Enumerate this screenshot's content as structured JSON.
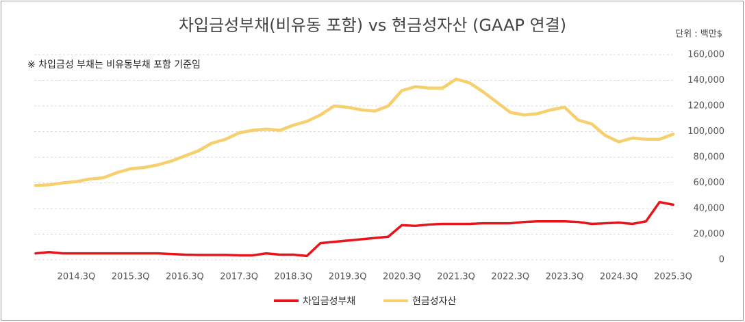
{
  "chart_data": {
    "type": "line",
    "title": "차입금성부채(비유동 포함) vs 현금성자산 (GAAP 연결)",
    "unit_label": "단위 : 백만$",
    "annotation": "※ 차입금성 부채는 비유동부채 포함 기준임",
    "categories": [
      null,
      null,
      null,
      "2014.3Q",
      null,
      null,
      null,
      "2015.3Q",
      null,
      null,
      null,
      "2016.3Q",
      null,
      null,
      null,
      "2017.3Q",
      null,
      null,
      null,
      "2018.3Q",
      null,
      null,
      null,
      "2019.3Q",
      null,
      null,
      null,
      "2020.3Q",
      null,
      null,
      null,
      "2021.3Q",
      null,
      null,
      null,
      "2022.3Q",
      null,
      null,
      null,
      "2023.3Q",
      null,
      null,
      null,
      "2024.3Q",
      null,
      null,
      null,
      "2025.3Q"
    ],
    "series": [
      {
        "name": "차입금성부채",
        "color": "#e8141b",
        "values": [
          5000,
          6000,
          5000,
          5000,
          5000,
          5000,
          5000,
          5000,
          5000,
          5000,
          4500,
          4000,
          3800,
          3800,
          3800,
          3500,
          3500,
          5000,
          4000,
          4000,
          3000,
          13000,
          14000,
          15000,
          16000,
          17000,
          18000,
          27000,
          26500,
          27500,
          28000,
          28000,
          28000,
          28500,
          28500,
          28500,
          29500,
          30000,
          30000,
          30000,
          29500,
          28000,
          28500,
          29000,
          28000,
          30000,
          45000,
          43000
        ]
      },
      {
        "name": "현금성자산",
        "color": "#f6d06e",
        "values": [
          58000,
          58500,
          60000,
          61000,
          63000,
          64000,
          68000,
          71000,
          72000,
          74000,
          77000,
          81000,
          85000,
          91000,
          94000,
          99000,
          101000,
          102000,
          101000,
          105000,
          108000,
          113000,
          120000,
          119000,
          117000,
          116000,
          120000,
          132000,
          135000,
          134000,
          134000,
          141000,
          138000,
          131000,
          123000,
          115000,
          113000,
          114000,
          117000,
          119000,
          109000,
          106000,
          97000,
          92000,
          95000,
          94000,
          94000,
          98000
        ]
      }
    ],
    "ylim": [
      0,
      160000
    ],
    "yticks": [
      0,
      {
        "value": 20000,
        "label": "20,000"
      },
      {
        "value": 40000,
        "label": "40,000"
      },
      {
        "value": 60000,
        "label": "60,000"
      },
      {
        "value": 80000,
        "label": "80,000"
      },
      {
        "value": 100000,
        "label": "100,000"
      },
      {
        "value": 120000,
        "label": "120,000"
      },
      {
        "value": 140000,
        "label": "140,000"
      },
      {
        "value": 160000,
        "label": "160,000"
      }
    ],
    "grid": true
  }
}
